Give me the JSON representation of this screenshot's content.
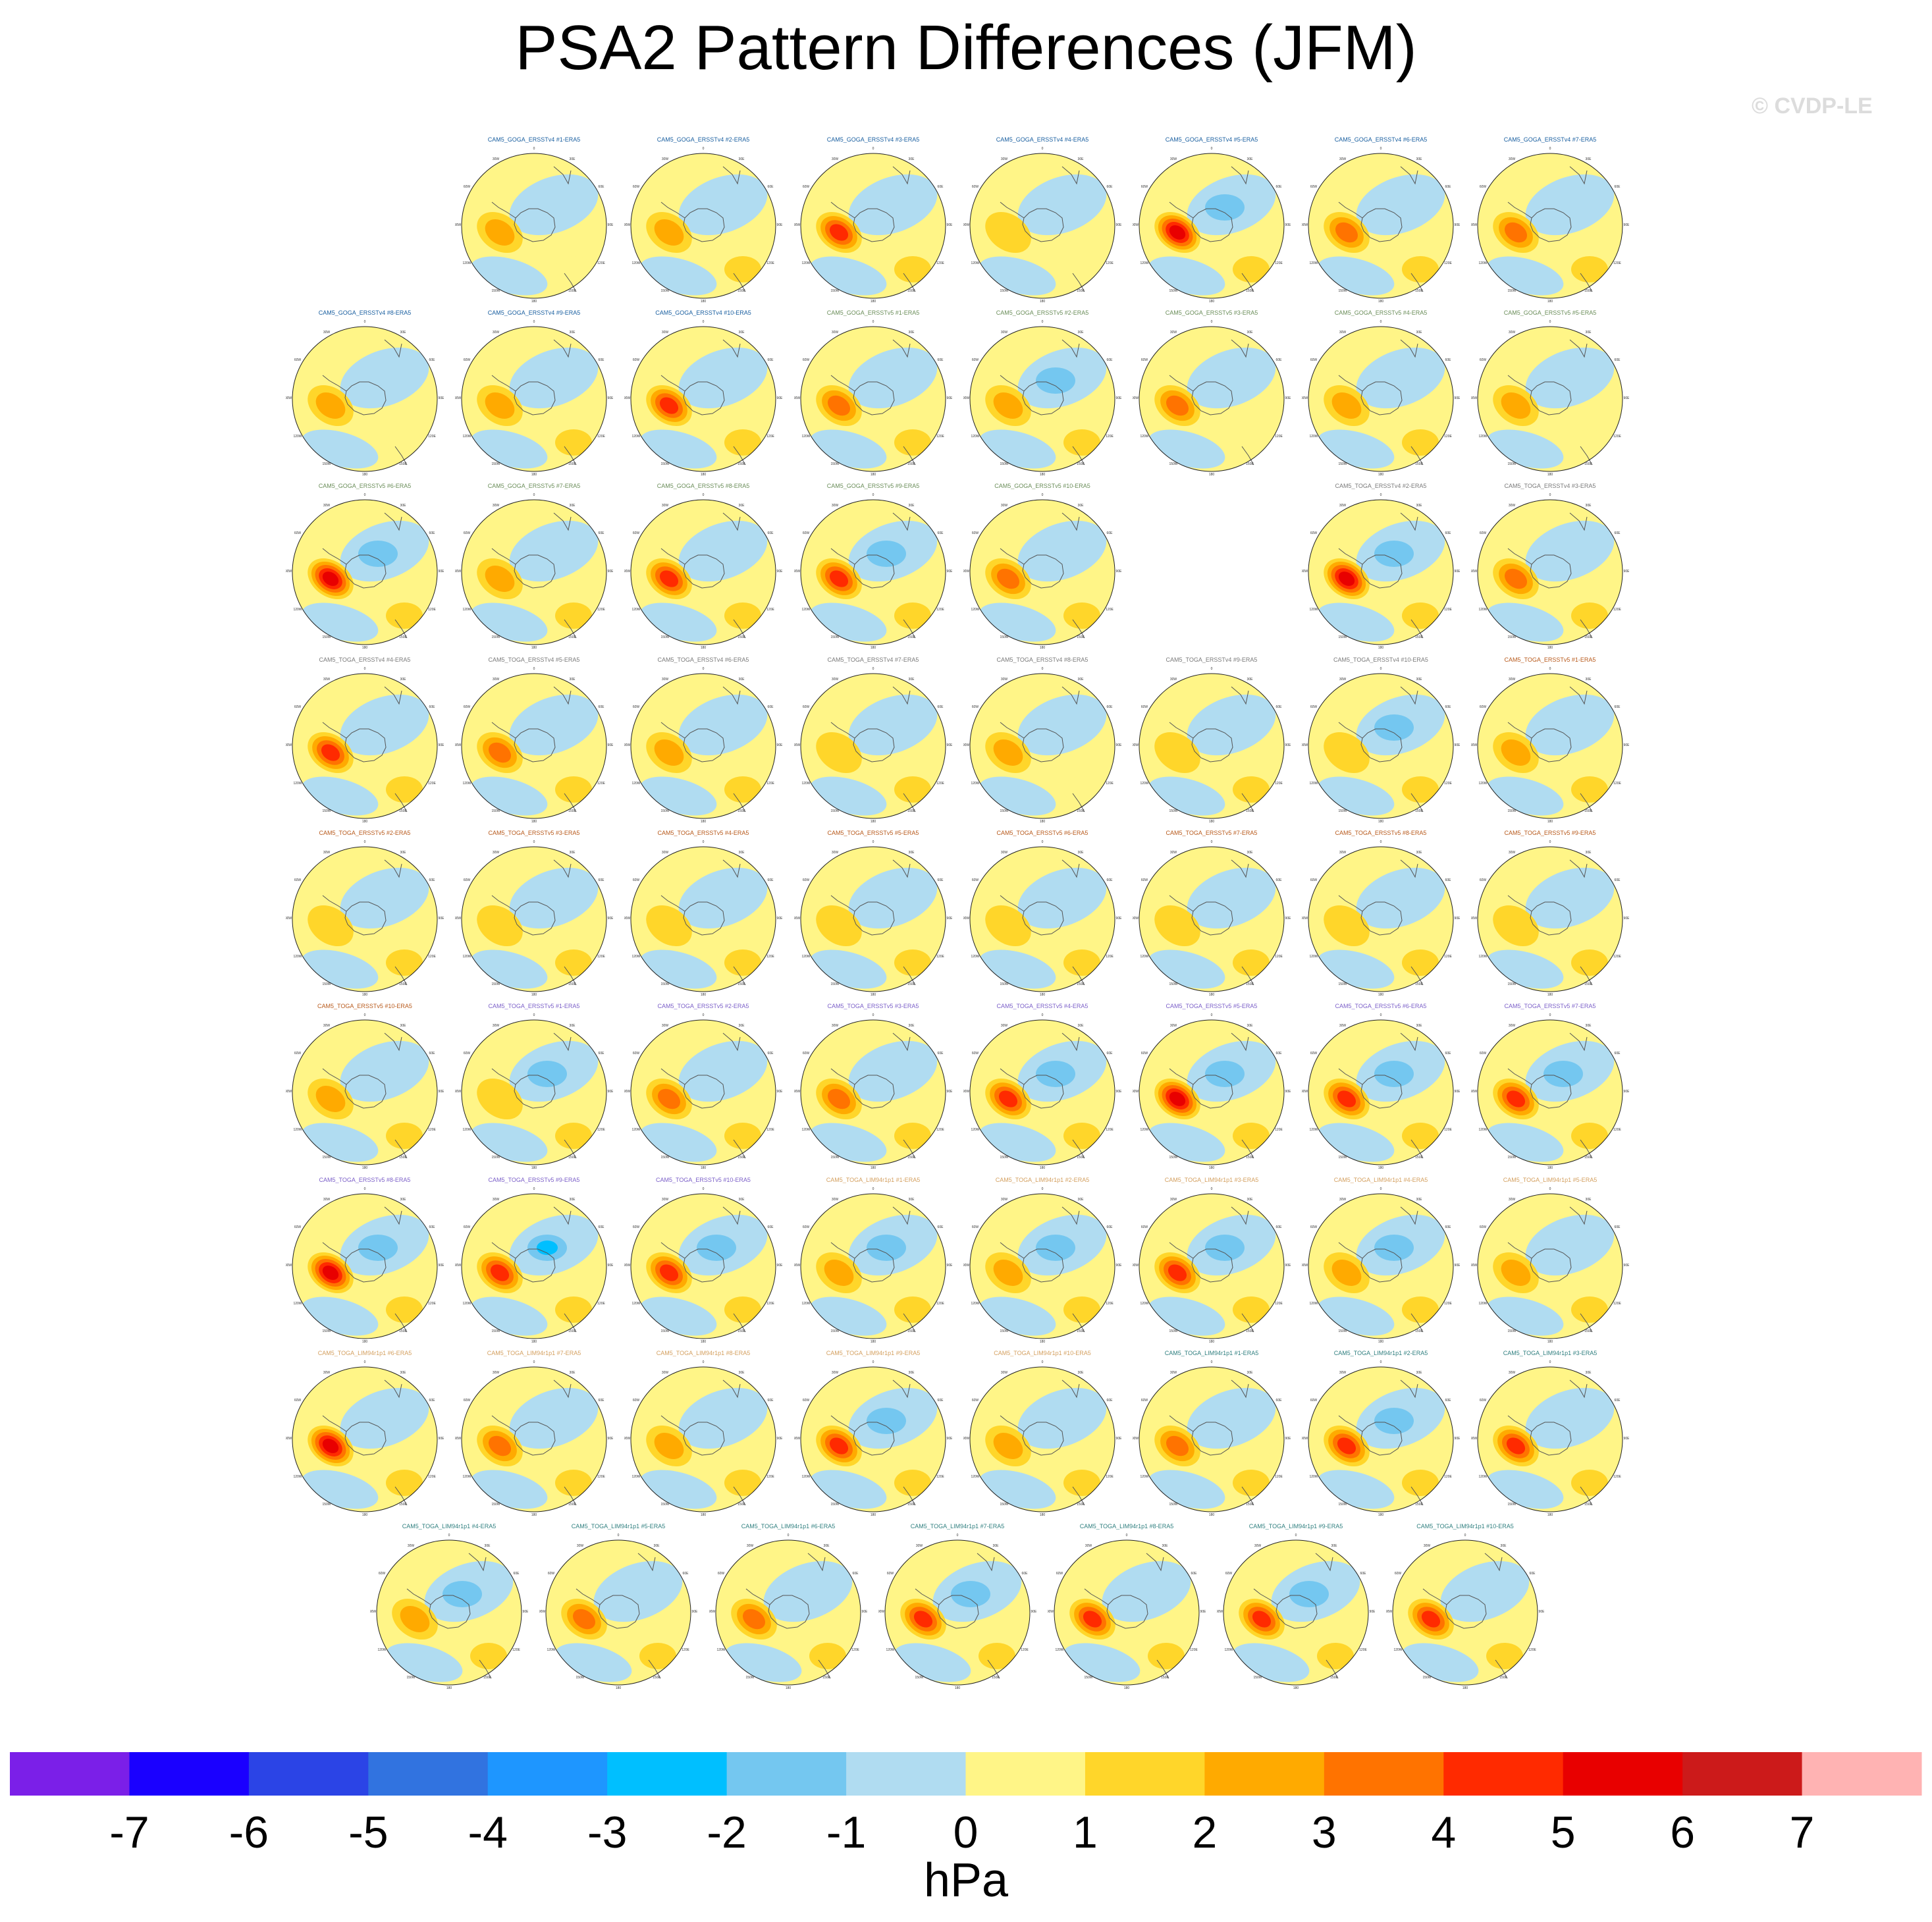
{
  "chart_data": {
    "type": "heatmap",
    "title": "PSA2 Pattern Differences (JFM)",
    "watermark": "© CVDP-LE",
    "units": "hPa",
    "colorbar": {
      "ticks": [
        "-7",
        "-6",
        "-5",
        "-4",
        "-3",
        "-2",
        "-1",
        "0",
        "1",
        "2",
        "3",
        "4",
        "5",
        "6",
        "7"
      ],
      "colors": [
        "#7b1fe8",
        "#1a00ff",
        "#2b44e6",
        "#3173e0",
        "#1e96ff",
        "#00bfff",
        "#74c7f0",
        "#b0dcf1",
        "#fff587",
        "#ffd62a",
        "#ffaa00",
        "#ff7300",
        "#ff2a00",
        "#e80000",
        "#cc1a1a",
        "#ffb3b3"
      ]
    },
    "panels": [
      {
        "title": "CAM5_GOGA_ERSSTv4 #1-ERA5",
        "color": "#1a5fa0",
        "values": [
          2,
          -1,
          0,
          0
        ]
      },
      {
        "title": "CAM5_GOGA_ERSSTv4 #2-ERA5",
        "color": "#1a5fa0",
        "values": [
          2,
          -1,
          1,
          0
        ]
      },
      {
        "title": "CAM5_GOGA_ERSSTv4 #3-ERA5",
        "color": "#1a5fa0",
        "values": [
          4,
          -1,
          1,
          0
        ]
      },
      {
        "title": "CAM5_GOGA_ERSSTv4 #4-ERA5",
        "color": "#1a5fa0",
        "values": [
          1,
          -1,
          0,
          0
        ]
      },
      {
        "title": "CAM5_GOGA_ERSSTv4 #5-ERA5",
        "color": "#1a5fa0",
        "values": [
          5,
          -2,
          1,
          0
        ]
      },
      {
        "title": "CAM5_GOGA_ERSSTv4 #6-ERA5",
        "color": "#1a5fa0",
        "values": [
          3,
          -1,
          1,
          0
        ]
      },
      {
        "title": "CAM5_GOGA_ERSSTv4 #7-ERA5",
        "color": "#1a5fa0",
        "values": [
          3,
          -1,
          1,
          0
        ]
      },
      {
        "title": "CAM5_GOGA_ERSSTv4 #8-ERA5",
        "color": "#1a5fa0",
        "values": [
          2,
          -1,
          0,
          0
        ]
      },
      {
        "title": "CAM5_GOGA_ERSSTv4 #9-ERA5",
        "color": "#1a5fa0",
        "values": [
          2,
          -1,
          1,
          0
        ]
      },
      {
        "title": "CAM5_GOGA_ERSSTv4 #10-ERA5",
        "color": "#1a5fa0",
        "values": [
          4,
          -1,
          1,
          0
        ]
      },
      {
        "title": "CAM5_GOGA_ERSSTv5 #1-ERA5",
        "color": "#6b8e5a",
        "values": [
          3,
          -1,
          1,
          0
        ]
      },
      {
        "title": "CAM5_GOGA_ERSSTv5 #2-ERA5",
        "color": "#6b8e5a",
        "values": [
          2,
          -2,
          1,
          0
        ]
      },
      {
        "title": "CAM5_GOGA_ERSSTv5 #3-ERA5",
        "color": "#6b8e5a",
        "values": [
          3,
          -1,
          0,
          0
        ]
      },
      {
        "title": "CAM5_GOGA_ERSSTv5 #4-ERA5",
        "color": "#6b8e5a",
        "values": [
          2,
          -1,
          1,
          0
        ]
      },
      {
        "title": "CAM5_GOGA_ERSSTv5 #5-ERA5",
        "color": "#6b8e5a",
        "values": [
          2,
          -1,
          0,
          0
        ]
      },
      {
        "title": "CAM5_GOGA_ERSSTv5 #6-ERA5",
        "color": "#6b8e5a",
        "values": [
          5,
          -2,
          1,
          0
        ]
      },
      {
        "title": "CAM5_GOGA_ERSSTv5 #7-ERA5",
        "color": "#6b8e5a",
        "values": [
          2,
          -1,
          1,
          0
        ]
      },
      {
        "title": "CAM5_GOGA_ERSSTv5 #8-ERA5",
        "color": "#6b8e5a",
        "values": [
          4,
          -1,
          1,
          0
        ]
      },
      {
        "title": "CAM5_GOGA_ERSSTv5 #9-ERA5",
        "color": "#6b8e5a",
        "values": [
          4,
          -2,
          1,
          0
        ]
      },
      {
        "title": "CAM5_GOGA_ERSSTv5 #10-ERA5",
        "color": "#6b8e5a",
        "values": [
          3,
          -1,
          1,
          0
        ]
      },
      {
        "title": "CAM5_TOGA_ERSSTv4 #2-ERA5",
        "color": "#7a7a7a",
        "values": [
          5,
          -2,
          1,
          0
        ]
      },
      {
        "title": "CAM5_TOGA_ERSSTv4 #3-ERA5",
        "color": "#7a7a7a",
        "values": [
          3,
          -1,
          1,
          0
        ]
      },
      {
        "title": "CAM5_TOGA_ERSSTv4 #4-ERA5",
        "color": "#7a7a7a",
        "values": [
          4,
          -1,
          1,
          0
        ]
      },
      {
        "title": "CAM5_TOGA_ERSSTv4 #5-ERA5",
        "color": "#7a7a7a",
        "values": [
          3,
          -1,
          1,
          0
        ]
      },
      {
        "title": "CAM5_TOGA_ERSSTv4 #6-ERA5",
        "color": "#7a7a7a",
        "values": [
          2,
          -1,
          1,
          0
        ]
      },
      {
        "title": "CAM5_TOGA_ERSSTv4 #7-ERA5",
        "color": "#7a7a7a",
        "values": [
          1,
          -1,
          1,
          0
        ]
      },
      {
        "title": "CAM5_TOGA_ERSSTv4 #8-ERA5",
        "color": "#7a7a7a",
        "values": [
          2,
          -1,
          0,
          0
        ]
      },
      {
        "title": "CAM5_TOGA_ERSSTv4 #9-ERA5",
        "color": "#7a7a7a",
        "values": [
          1,
          -1,
          1,
          0
        ]
      },
      {
        "title": "CAM5_TOGA_ERSSTv4 #10-ERA5",
        "color": "#7a7a7a",
        "values": [
          1,
          -2,
          1,
          0
        ]
      },
      {
        "title": "CAM5_TOGA_ERSSTv5 #1-ERA5",
        "color": "#b85a1c",
        "values": [
          2,
          -1,
          1,
          0
        ]
      },
      {
        "title": "CAM5_TOGA_ERSSTv5 #2-ERA5",
        "color": "#b85a1c",
        "values": [
          1,
          -1,
          1,
          0
        ]
      },
      {
        "title": "CAM5_TOGA_ERSSTv5 #3-ERA5",
        "color": "#b85a1c",
        "values": [
          1,
          -1,
          1,
          0
        ]
      },
      {
        "title": "CAM5_TOGA_ERSSTv5 #4-ERA5",
        "color": "#b85a1c",
        "values": [
          1,
          -1,
          1,
          0
        ]
      },
      {
        "title": "CAM5_TOGA_ERSSTv5 #5-ERA5",
        "color": "#b85a1c",
        "values": [
          1,
          -1,
          1,
          0
        ]
      },
      {
        "title": "CAM5_TOGA_ERSSTv5 #6-ERA5",
        "color": "#b85a1c",
        "values": [
          1,
          -1,
          1,
          0
        ]
      },
      {
        "title": "CAM5_TOGA_ERSSTv5 #7-ERA5",
        "color": "#b85a1c",
        "values": [
          1,
          -1,
          1,
          0
        ]
      },
      {
        "title": "CAM5_TOGA_ERSSTv5 #8-ERA5",
        "color": "#b85a1c",
        "values": [
          1,
          -1,
          1,
          0
        ]
      },
      {
        "title": "CAM5_TOGA_ERSSTv5 #9-ERA5",
        "color": "#b85a1c",
        "values": [
          1,
          -1,
          1,
          0
        ]
      },
      {
        "title": "CAM5_TOGA_ERSSTv5 #10-ERA5",
        "color": "#b85a1c",
        "values": [
          2,
          -1,
          1,
          0
        ]
      },
      {
        "title": "CAM5_TOGA_ERSSTv5 #1-ERA5",
        "color": "#7b5fc8",
        "values": [
          1,
          -2,
          2,
          0
        ]
      },
      {
        "title": "CAM5_TOGA_ERSSTv5 #2-ERA5",
        "color": "#7b5fc8",
        "values": [
          3,
          -1,
          1,
          0
        ]
      },
      {
        "title": "CAM5_TOGA_ERSSTv5 #3-ERA5",
        "color": "#7b5fc8",
        "values": [
          3,
          -1,
          1,
          0
        ]
      },
      {
        "title": "CAM5_TOGA_ERSSTv5 #4-ERA5",
        "color": "#7b5fc8",
        "values": [
          4,
          -2,
          1,
          0
        ]
      },
      {
        "title": "CAM5_TOGA_ERSSTv5 #5-ERA5",
        "color": "#7b5fc8",
        "values": [
          5,
          -2,
          1,
          0
        ]
      },
      {
        "title": "CAM5_TOGA_ERSSTv5 #6-ERA5",
        "color": "#7b5fc8",
        "values": [
          4,
          -2,
          1,
          0
        ]
      },
      {
        "title": "CAM5_TOGA_ERSSTv5 #7-ERA5",
        "color": "#7b5fc8",
        "values": [
          4,
          -2,
          1,
          0
        ]
      },
      {
        "title": "CAM5_TOGA_ERSSTv5 #8-ERA5",
        "color": "#7b5fc8",
        "values": [
          5,
          -2,
          1,
          0
        ]
      },
      {
        "title": "CAM5_TOGA_ERSSTv5 #9-ERA5",
        "color": "#7b5fc8",
        "values": [
          4,
          -3,
          1,
          0
        ]
      },
      {
        "title": "CAM5_TOGA_ERSSTv5 #10-ERA5",
        "color": "#7b5fc8",
        "values": [
          4,
          -2,
          1,
          0
        ]
      },
      {
        "title": "CAM5_TOGA_LIM94r1p1 #1-ERA5",
        "color": "#d4a060",
        "values": [
          2,
          -2,
          2,
          0
        ]
      },
      {
        "title": "CAM5_TOGA_LIM94r1p1 #2-ERA5",
        "color": "#d4a060",
        "values": [
          2,
          -2,
          1,
          0
        ]
      },
      {
        "title": "CAM5_TOGA_LIM94r1p1 #3-ERA5",
        "color": "#d4a060",
        "values": [
          4,
          -2,
          1,
          0
        ]
      },
      {
        "title": "CAM5_TOGA_LIM94r1p1 #4-ERA5",
        "color": "#d4a060",
        "values": [
          2,
          -2,
          2,
          0
        ]
      },
      {
        "title": "CAM5_TOGA_LIM94r1p1 #5-ERA5",
        "color": "#d4a060",
        "values": [
          2,
          -1,
          1,
          0
        ]
      },
      {
        "title": "CAM5_TOGA_LIM94r1p1 #6-ERA5",
        "color": "#d4a060",
        "values": [
          5,
          -1,
          2,
          0
        ]
      },
      {
        "title": "CAM5_TOGA_LIM94r1p1 #7-ERA5",
        "color": "#d4a060",
        "values": [
          3,
          -1,
          1,
          0
        ]
      },
      {
        "title": "CAM5_TOGA_LIM94r1p1 #8-ERA5",
        "color": "#d4a060",
        "values": [
          2,
          -1,
          1,
          0
        ]
      },
      {
        "title": "CAM5_TOGA_LIM94r1p1 #9-ERA5",
        "color": "#d4a060",
        "values": [
          4,
          -2,
          1,
          0
        ]
      },
      {
        "title": "CAM5_TOGA_LIM94r1p1 #10-ERA5",
        "color": "#d4a060",
        "values": [
          2,
          -1,
          1,
          0
        ]
      },
      {
        "title": "CAM5_TOGA_LIM94r1p1 #1-ERA5",
        "color": "#2f7f7f",
        "values": [
          3,
          -1,
          1,
          0
        ]
      },
      {
        "title": "CAM5_TOGA_LIM94r1p1 #2-ERA5",
        "color": "#2f7f7f",
        "values": [
          4,
          -2,
          1,
          0
        ]
      },
      {
        "title": "CAM5_TOGA_LIM94r1p1 #3-ERA5",
        "color": "#2f7f7f",
        "values": [
          4,
          -1,
          1,
          0
        ]
      },
      {
        "title": "CAM5_TOGA_LIM94r1p1 #4-ERA5",
        "color": "#2f7f7f",
        "values": [
          2,
          -2,
          1,
          0
        ]
      },
      {
        "title": "CAM5_TOGA_LIM94r1p1 #5-ERA5",
        "color": "#2f7f7f",
        "values": [
          3,
          -1,
          1,
          0
        ]
      },
      {
        "title": "CAM5_TOGA_LIM94r1p1 #6-ERA5",
        "color": "#2f7f7f",
        "values": [
          3,
          -1,
          1,
          0
        ]
      },
      {
        "title": "CAM5_TOGA_LIM94r1p1 #7-ERA5",
        "color": "#2f7f7f",
        "values": [
          4,
          -2,
          1,
          0
        ]
      },
      {
        "title": "CAM5_TOGA_LIM94r1p1 #8-ERA5",
        "color": "#2f7f7f",
        "values": [
          4,
          -1,
          1,
          0
        ]
      },
      {
        "title": "CAM5_TOGA_LIM94r1p1 #9-ERA5",
        "color": "#2f7f7f",
        "values": [
          4,
          -2,
          1,
          0
        ]
      },
      {
        "title": "CAM5_TOGA_LIM94r1p1 #10-ERA5",
        "color": "#2f7f7f",
        "values": [
          4,
          -1,
          1,
          0
        ]
      }
    ],
    "map_labels": [
      "0",
      "30W",
      "30E",
      "60W",
      "60E",
      "90W",
      "90E",
      "120W",
      "120E",
      "150W",
      "150E",
      "180"
    ]
  }
}
